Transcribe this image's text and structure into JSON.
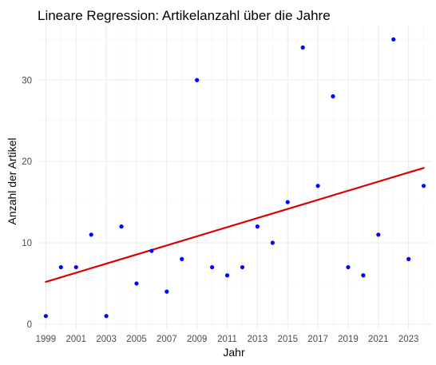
{
  "chart_data": {
    "type": "scatter",
    "title": "Lineare Regression: Artikelanzahl über die Jahre",
    "xlabel": "Jahr",
    "ylabel": "Anzahl der Artikel",
    "xlim": [
      1998.45,
      2024.55
    ],
    "ylim": [
      -0.7,
      36.7
    ],
    "x_ticks": [
      1999,
      2001,
      2003,
      2005,
      2007,
      2009,
      2011,
      2013,
      2015,
      2017,
      2019,
      2021,
      2023
    ],
    "y_ticks": [
      0,
      10,
      20,
      30
    ],
    "grid": true,
    "points": [
      {
        "x": 1999,
        "y": 1
      },
      {
        "x": 2000,
        "y": 7
      },
      {
        "x": 2001,
        "y": 7
      },
      {
        "x": 2002,
        "y": 11
      },
      {
        "x": 2003,
        "y": 1
      },
      {
        "x": 2004,
        "y": 12
      },
      {
        "x": 2005,
        "y": 5
      },
      {
        "x": 2006,
        "y": 9
      },
      {
        "x": 2007,
        "y": 4
      },
      {
        "x": 2008,
        "y": 8
      },
      {
        "x": 2009,
        "y": 30
      },
      {
        "x": 2010,
        "y": 7
      },
      {
        "x": 2011,
        "y": 6
      },
      {
        "x": 2012,
        "y": 7
      },
      {
        "x": 2013,
        "y": 12
      },
      {
        "x": 2014,
        "y": 10
      },
      {
        "x": 2015,
        "y": 15
      },
      {
        "x": 2016,
        "y": 34
      },
      {
        "x": 2017,
        "y": 17
      },
      {
        "x": 2018,
        "y": 28
      },
      {
        "x": 2019,
        "y": 7
      },
      {
        "x": 2020,
        "y": 6
      },
      {
        "x": 2021,
        "y": 11
      },
      {
        "x": 2022,
        "y": 35
      },
      {
        "x": 2023,
        "y": 8
      },
      {
        "x": 2024,
        "y": 17
      }
    ],
    "regression_line": {
      "x": [
        1999,
        2024
      ],
      "y": [
        5.2,
        19.2
      ]
    },
    "colors": {
      "points": "#0000ff",
      "regression": "#dd0000"
    }
  }
}
